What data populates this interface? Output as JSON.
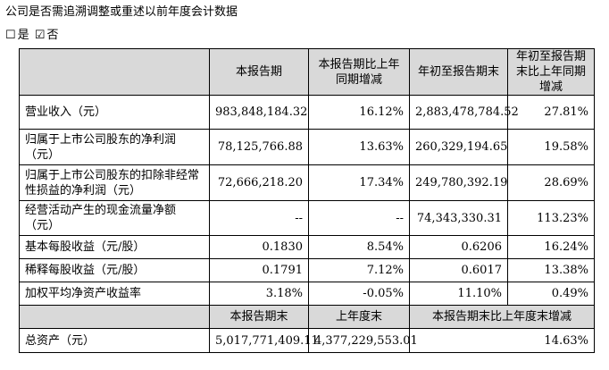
{
  "title": "公司是否需追溯调整或重述以前年度会计数据",
  "choice": {
    "yes_box": "☐",
    "yes_label": "是",
    "no_box": "☑",
    "no_label": "否"
  },
  "header": {
    "c1": "本报告期",
    "c2": "本报告期比上年同期增减",
    "c3": "年初至报告期末",
    "c4": "年初至报告期末比上年同期增减"
  },
  "rows": [
    {
      "label": "营业收入（元）",
      "v1": "983,848,184.32",
      "v2": "16.12%",
      "v3": "2,883,478,784.52",
      "v4": "27.81%"
    },
    {
      "label": "归属于上市公司股东的净利润（元）",
      "v1": "78,125,766.88",
      "v2": "13.63%",
      "v3": "260,329,194.65",
      "v4": "19.58%"
    },
    {
      "label": "归属于上市公司股东的扣除非经常性损益的净利润（元）",
      "v1": "72,666,218.20",
      "v2": "17.34%",
      "v3": "249,780,392.19",
      "v4": "28.69%"
    },
    {
      "label": "经营活动产生的现金流量净额（元）",
      "v1": "--",
      "v2": "--",
      "v3": "74,343,330.31",
      "v4": "113.23%"
    },
    {
      "label": "基本每股收益（元/股）",
      "v1": "0.1830",
      "v2": "8.54%",
      "v3": "0.6206",
      "v4": "16.24%"
    },
    {
      "label": "稀释每股收益（元/股）",
      "v1": "0.1791",
      "v2": "7.12%",
      "v3": "0.6017",
      "v4": "13.38%"
    },
    {
      "label": "加权平均净资产收益率",
      "v1": "3.18%",
      "v2": "-0.05%",
      "v3": "11.10%",
      "v4": "0.49%"
    }
  ],
  "header2": {
    "c1": "本报告期末",
    "c2": "上年度末",
    "c3": "本报告期末比上年度末增减"
  },
  "asset_row": {
    "label": "总资产（元）",
    "v1": "5,017,771,409.11",
    "v2": "4,377,229,553.01",
    "v3": "14.63%"
  }
}
